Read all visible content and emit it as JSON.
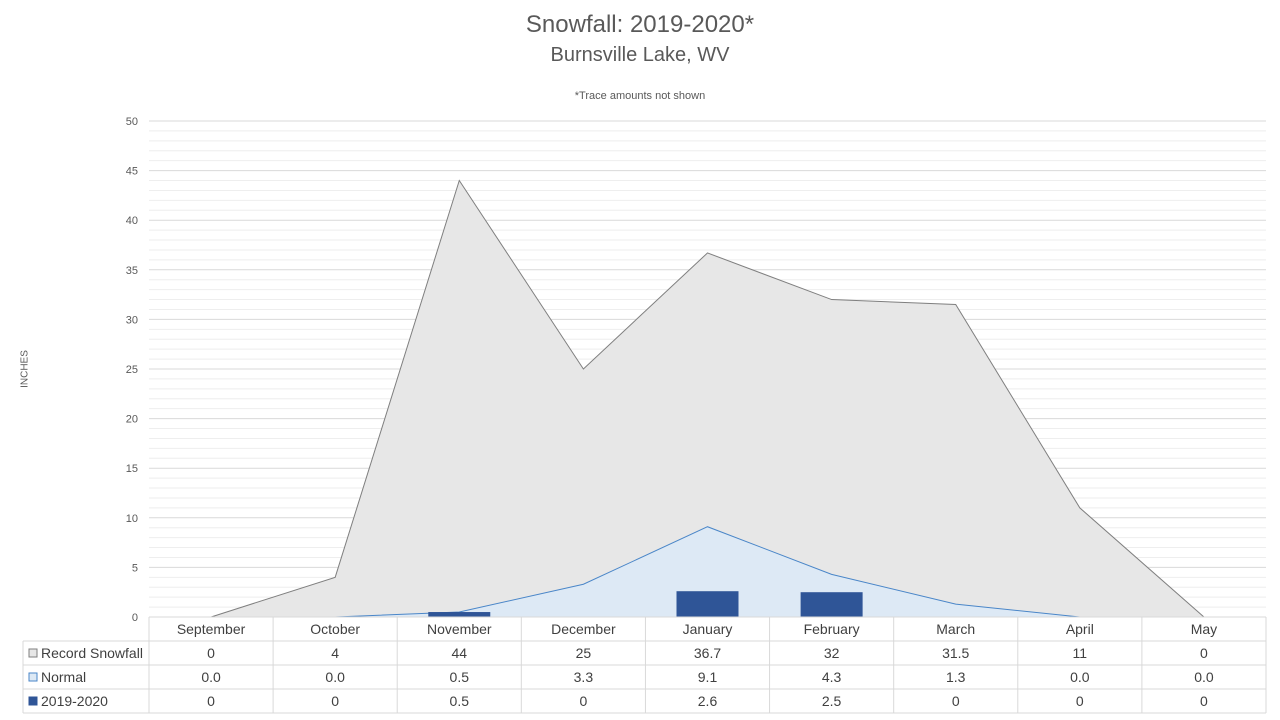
{
  "title": "Snowfall: 2019-2020*",
  "subtitle": "Burnsville Lake, WV",
  "note": "*Trace amounts not shown",
  "colors": {
    "record_fill": "#e7e7e7",
    "record_line": "#7f7f7f",
    "normal_fill": "#dde9f5",
    "normal_line": "#4a86c8",
    "season_bar": "#2f5597",
    "grid_major": "#d9d9d9",
    "grid_minor": "#eeeeee",
    "table_border": "#d9d9d9",
    "text": "#595959"
  },
  "chart_data": {
    "type": "area",
    "title": "Snowfall: 2019-2020*",
    "subtitle": "Burnsville Lake, WV",
    "ylabel": "INCHES",
    "xlabel": "",
    "ylim": [
      0,
      50
    ],
    "yticks": [
      0,
      5,
      10,
      15,
      20,
      25,
      30,
      35,
      40,
      45,
      50
    ],
    "minor_gridlines": true,
    "legend_position": "data-table",
    "categories": [
      "September",
      "October",
      "November",
      "December",
      "January",
      "February",
      "March",
      "April",
      "May"
    ],
    "series": [
      {
        "name": "Record Snowfall",
        "type": "area",
        "values": [
          0,
          4,
          44,
          25,
          36.7,
          32,
          31.5,
          11,
          0
        ],
        "labels": [
          "0",
          "4",
          "44",
          "25",
          "36.7",
          "32",
          "31.5",
          "11",
          "0"
        ]
      },
      {
        "name": "Normal",
        "type": "area",
        "values": [
          0.0,
          0.0,
          0.5,
          3.3,
          9.1,
          4.3,
          1.3,
          0.0,
          0.0
        ],
        "labels": [
          "0.0",
          "0.0",
          "0.5",
          "3.3",
          "9.1",
          "4.3",
          "1.3",
          "0.0",
          "0.0"
        ]
      },
      {
        "name": "2019-2020",
        "type": "bar",
        "values": [
          0,
          0,
          0.5,
          0,
          2.6,
          2.5,
          0,
          0,
          0
        ],
        "labels": [
          "0",
          "0",
          "0.5",
          "0",
          "2.6",
          "2.5",
          "0",
          "0",
          "0"
        ]
      }
    ]
  }
}
